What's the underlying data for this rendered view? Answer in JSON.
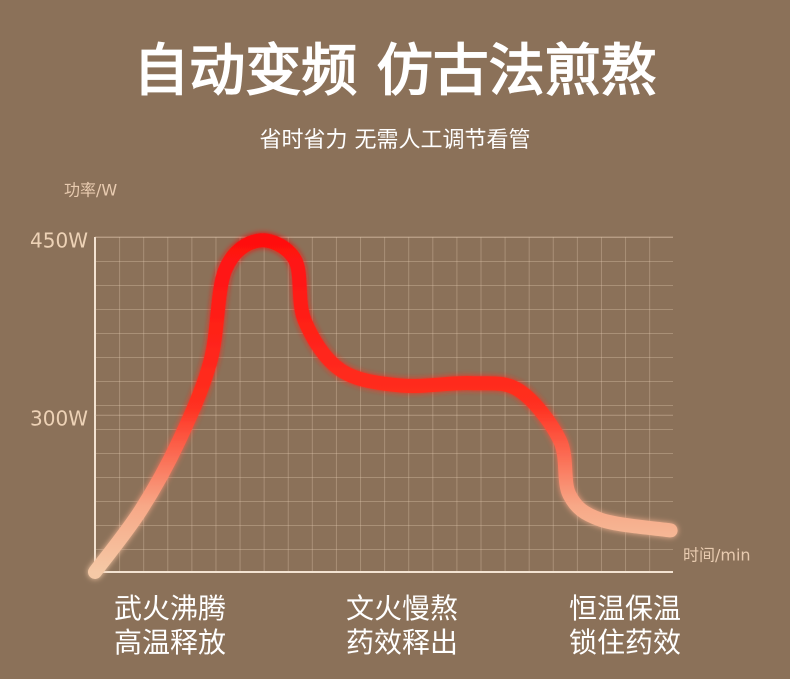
{
  "chart_data": {
    "type": "line",
    "title": "自动变频 仿古法煎熬",
    "subtitle": "省时省力 无需人工调节看管",
    "y_label": "功率/W",
    "x_label": "时间/min",
    "x": [
      0,
      1.9,
      3.5,
      4.8,
      5.4,
      6.8,
      8.3,
      8.7,
      10.2,
      12.7,
      15.6,
      17.6,
      19.3,
      19.7,
      21.0,
      23.9
    ],
    "series": [
      {
        "name": "功率",
        "color": "#ff1a1a",
        "values": [
          168,
          220,
          279,
          346,
          422,
          447,
          431,
          380,
          338,
          325,
          327,
          321,
          279,
          233,
          212,
          203
        ]
      }
    ],
    "xlim": [
      0,
      24
    ],
    "ylim": [
      168,
      450
    ],
    "yticks": [
      {
        "value": 300,
        "label": "300W"
      },
      {
        "value": 450,
        "label": "450W"
      }
    ],
    "grid": true,
    "annotations": [
      {
        "lines": [
          "武火沸腾",
          "高温释放"
        ]
      },
      {
        "lines": [
          "文火慢熬",
          "药效释出"
        ]
      },
      {
        "lines": [
          "恒温保温",
          "锁住药效"
        ]
      }
    ]
  }
}
